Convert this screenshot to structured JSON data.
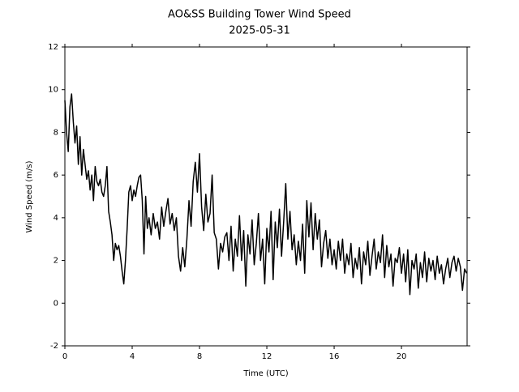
{
  "chart_data": {
    "type": "line",
    "title": "AO&SS Building Tower Wind Speed",
    "subtitle": "2025-05-31",
    "x_label": "Time (UTC)",
    "y_label": "Wind Speed (m/s)",
    "color": "#000000",
    "xlim": [
      0,
      23.9
    ],
    "xticks": [
      0,
      4,
      8,
      12,
      16,
      20
    ],
    "ylim": [
      -2,
      12
    ],
    "yticks": [
      -2,
      0,
      2,
      4,
      6,
      8,
      10,
      12
    ],
    "grid": false,
    "x": [
      0,
      0.1,
      0.2,
      0.3,
      0.4,
      0.5,
      0.6,
      0.7,
      0.8,
      0.9,
      1,
      1.1,
      1.2,
      1.3,
      1.4,
      1.5,
      1.6,
      1.7,
      1.8,
      1.9,
      2,
      2.1,
      2.2,
      2.3,
      2.4,
      2.5,
      2.6,
      2.7,
      2.8,
      2.9,
      3,
      3.1,
      3.2,
      3.3,
      3.4,
      3.5,
      3.6,
      3.7,
      3.8,
      3.9,
      4,
      4.1,
      4.2,
      4.3,
      4.4,
      4.5,
      4.6,
      4.7,
      4.8,
      4.9,
      5,
      5.125,
      5.25,
      5.375,
      5.5,
      5.625,
      5.75,
      5.875,
      6,
      6.125,
      6.25,
      6.375,
      6.5,
      6.625,
      6.75,
      6.875,
      7,
      7.125,
      7.25,
      7.375,
      7.5,
      7.625,
      7.75,
      7.875,
      8,
      8.125,
      8.25,
      8.375,
      8.5,
      8.625,
      8.75,
      8.875,
      9,
      9.125,
      9.25,
      9.375,
      9.5,
      9.625,
      9.75,
      9.875,
      10,
      10.125,
      10.25,
      10.375,
      10.5,
      10.625,
      10.75,
      10.875,
      11,
      11.125,
      11.25,
      11.375,
      11.5,
      11.625,
      11.75,
      11.875,
      12,
      12.125,
      12.25,
      12.375,
      12.5,
      12.625,
      12.75,
      12.875,
      13,
      13.125,
      13.25,
      13.375,
      13.5,
      13.625,
      13.75,
      13.875,
      14,
      14.125,
      14.25,
      14.375,
      14.5,
      14.625,
      14.75,
      14.875,
      15,
      15.125,
      15.25,
      15.375,
      15.5,
      15.625,
      15.75,
      15.875,
      16,
      16.125,
      16.25,
      16.375,
      16.5,
      16.625,
      16.75,
      16.875,
      17,
      17.125,
      17.25,
      17.375,
      17.5,
      17.625,
      17.75,
      17.875,
      18,
      18.125,
      18.25,
      18.375,
      18.5,
      18.625,
      18.75,
      18.875,
      19,
      19.125,
      19.25,
      19.375,
      19.5,
      19.625,
      19.75,
      19.875,
      20,
      20.125,
      20.25,
      20.375,
      20.5,
      20.625,
      20.75,
      20.875,
      21,
      21.125,
      21.25,
      21.375,
      21.5,
      21.625,
      21.75,
      21.875,
      22,
      22.125,
      22.25,
      22.375,
      22.5,
      22.625,
      22.75,
      22.875,
      23,
      23.125,
      23.25,
      23.375,
      23.5,
      23.625,
      23.75,
      23.875
    ],
    "values": [
      9.5,
      8,
      7.1,
      9.2,
      9.8,
      8.5,
      7.5,
      8.3,
      6.5,
      7.8,
      6.0,
      7.2,
      6.5,
      5.8,
      6.2,
      5.3,
      6.0,
      4.8,
      6.4,
      5.7,
      5.5,
      5.8,
      5.2,
      5.0,
      5.5,
      6.4,
      4.3,
      3.8,
      3.2,
      2.0,
      2.8,
      2.5,
      2.7,
      2.2,
      1.5,
      0.9,
      2.0,
      3.5,
      5.2,
      5.5,
      4.8,
      5.3,
      5.0,
      5.5,
      5.9,
      6.0,
      4.8,
      2.3,
      5.0,
      3.5,
      4.0,
      3.2,
      4.2,
      3.5,
      3.8,
      3.0,
      4.5,
      3.6,
      4.3,
      4.9,
      3.7,
      4.2,
      3.4,
      4.0,
      2.2,
      1.5,
      2.6,
      1.7,
      3.0,
      4.8,
      3.6,
      5.7,
      6.6,
      5.2,
      7.0,
      4.5,
      3.4,
      5.1,
      3.8,
      4.2,
      6.0,
      3.3,
      3.0,
      1.6,
      2.8,
      2.4,
      3.1,
      3.3,
      2.0,
      3.6,
      1.5,
      3.0,
      2.2,
      4.1,
      2.0,
      3.4,
      0.8,
      3.2,
      2.3,
      3.9,
      1.8,
      2.8,
      4.2,
      2.0,
      3.0,
      0.9,
      3.5,
      2.4,
      4.3,
      1.1,
      3.8,
      2.6,
      4.4,
      2.2,
      3.8,
      5.6,
      3.0,
      4.3,
      2.5,
      3.2,
      1.8,
      2.9,
      2.0,
      3.7,
      1.4,
      4.8,
      3.1,
      4.7,
      2.5,
      4.2,
      3.0,
      3.9,
      1.7,
      2.8,
      3.4,
      2.1,
      3.0,
      1.8,
      2.5,
      1.6,
      2.9,
      2.0,
      3.0,
      1.4,
      2.3,
      1.8,
      2.8,
      1.2,
      2.1,
      1.6,
      2.6,
      0.9,
      2.4,
      1.8,
      2.9,
      1.3,
      2.2,
      3.0,
      1.6,
      2.4,
      1.9,
      3.2,
      1.2,
      2.7,
      1.7,
      2.3,
      0.8,
      2.1,
      1.9,
      2.6,
      1.4,
      2.3,
      1.0,
      2.5,
      0.4,
      2.0,
      1.6,
      2.3,
      0.7,
      1.9,
      1.2,
      2.4,
      1.0,
      2.1,
      1.5,
      2.0,
      1.1,
      2.2,
      1.4,
      1.8,
      0.9,
      1.6,
      2.1,
      1.2,
      1.9,
      2.2,
      1.5,
      2.1,
      1.7,
      0.6,
      1.6,
      1.4
    ]
  }
}
